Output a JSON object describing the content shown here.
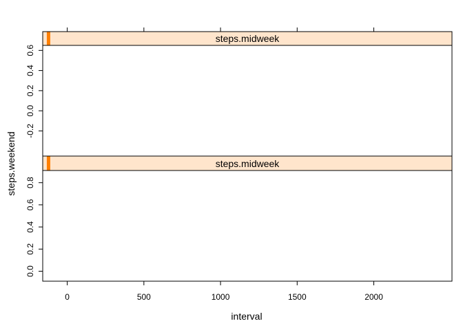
{
  "chart_data": {
    "type": "scatter",
    "xlabel": "interval",
    "ylabel": "steps.weekend",
    "xlim": [
      -160,
      2510
    ],
    "x_ticks": [
      0,
      500,
      1000,
      1500,
      2000
    ],
    "x_tick_labels": [
      "0",
      "500",
      "1000",
      "1500",
      "2000"
    ],
    "grid": false,
    "panels": [
      {
        "strip_label": "steps.midweek",
        "strip_level": 0.01,
        "ylim": [
          -0.45,
          0.65
        ],
        "y_ticks": [
          -0.2,
          0.0,
          0.2,
          0.4,
          0.6
        ],
        "y_tick_labels": [
          "-0.2",
          "0.0",
          "0.2",
          "0.4",
          "0.6"
        ],
        "points": []
      },
      {
        "strip_label": "steps.midweek",
        "strip_level": 0.01,
        "ylim": [
          -0.09,
          0.91
        ],
        "y_ticks": [
          0.0,
          0.2,
          0.4,
          0.6,
          0.8
        ],
        "y_tick_labels": [
          "0.0",
          "0.2",
          "0.4",
          "0.6",
          "0.8"
        ],
        "points": []
      }
    ],
    "colors": {
      "strip_background": "#ffe5cc",
      "strip_indicator": "#ff7f00",
      "frame": "#000000"
    }
  }
}
